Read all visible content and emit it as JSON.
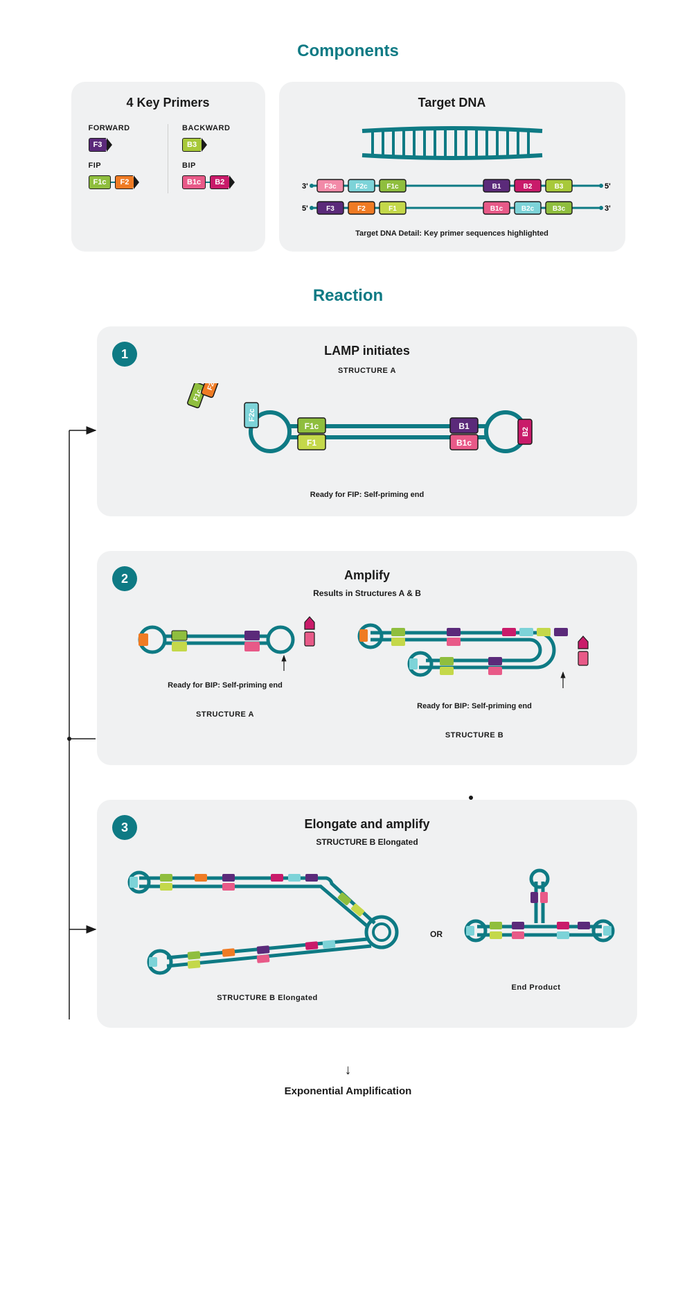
{
  "colors": {
    "heading": "#0e7a84",
    "panel_bg": "#f0f1f2",
    "badge_bg": "#0e7a84",
    "dna_strand": "#0e7a84",
    "arrow_line": "#1a1a1a",
    "text": "#1a1a1a",
    "divider": "#cfcfcf"
  },
  "components": {
    "heading": "Components",
    "primers_title": "4 Key Primers",
    "forward_label": "FORWARD",
    "backward_label": "BACKWARD",
    "fip_label": "FIP",
    "bip_label": "BIP",
    "target_title": "Target DNA",
    "target_caption": "Target DNA Detail: Key primer sequences highlighted",
    "end_3": "3'",
    "end_5": "5'"
  },
  "primers": {
    "F3": {
      "text": "F3",
      "fill": "#5b2a7a"
    },
    "B3": {
      "text": "B3",
      "fill": "#a8c93a"
    },
    "F1c": {
      "text": "F1c",
      "fill": "#8fbe3e"
    },
    "F2": {
      "text": "F2",
      "fill": "#ef7b24"
    },
    "B1c": {
      "text": "B1c",
      "fill": "#e85a88"
    },
    "B2": {
      "text": "B2",
      "fill": "#c91b6a"
    },
    "F2c": {
      "text": "F2c",
      "fill": "#7dd3d8"
    },
    "F1": {
      "text": "F1",
      "fill": "#c4d84a"
    },
    "B1": {
      "text": "B1",
      "fill": "#5b2a7a"
    },
    "B2c": {
      "text": "B2c",
      "fill": "#7dd3d8"
    },
    "F3c": {
      "text": "F3c",
      "fill": "#f28aa8"
    },
    "B3c": {
      "text": "B3c",
      "fill": "#8fbe3e"
    }
  },
  "target_strand_top": [
    "F3c",
    "F2c",
    "F1c",
    "B1",
    "B2",
    "B3"
  ],
  "target_strand_bot": [
    "F3",
    "F2",
    "F1",
    "B1c",
    "B2c",
    "B3c"
  ],
  "reaction": {
    "heading": "Reaction",
    "step1": {
      "num": "1",
      "title": "LAMP initiates",
      "struct_label": "STRUCTURE A",
      "caption": "Ready for FIP: Self-priming end"
    },
    "step2": {
      "num": "2",
      "title": "Amplify",
      "sub": "Results in Structures A & B",
      "caption_a": "Ready for BIP: Self-priming end",
      "caption_b": "Ready for BIP: Self-priming end",
      "label_a": "STRUCTURE A",
      "label_b": "STRUCTURE B"
    },
    "step3": {
      "num": "3",
      "title": "Elongate and amplify",
      "sub": "STRUCTURE B Elongated",
      "or": "OR",
      "label_b_elong": "STRUCTURE B Elongated",
      "label_end": "End Product"
    }
  },
  "footer": {
    "arrow": "↓",
    "text": "Exponential Amplification"
  },
  "diagram": {
    "stroke_width_main": 6,
    "stroke_width_thin": 4,
    "loop_radius": 26,
    "primer_box_w": 38,
    "primer_box_h": 20,
    "font_primer": 11,
    "font_title": 18,
    "font_struct": 11
  }
}
